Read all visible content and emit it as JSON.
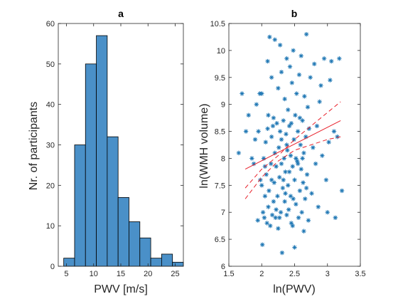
{
  "colors": {
    "bar_fill": "#4A90C8",
    "bar_edge": "#000000",
    "marker": "#1F77B4",
    "fit_line": "#E8202A",
    "axis": "#262626"
  },
  "chart_data": [
    {
      "type": "bar",
      "title": "a",
      "xlabel": "PWV [m/s]",
      "ylabel": "Nr. of participants",
      "xlim": [
        3.5,
        26.5
      ],
      "ylim": [
        0,
        60
      ],
      "xticks": [
        5,
        10,
        15,
        20,
        25
      ],
      "yticks": [
        0,
        10,
        20,
        30,
        40,
        50,
        60
      ],
      "bin_edges": [
        4.5,
        6.5,
        8.5,
        10.5,
        12.5,
        14.5,
        16.5,
        18.5,
        20.5,
        22.5,
        24.5,
        26.5
      ],
      "values": [
        2,
        30,
        50,
        57,
        32,
        17,
        11,
        7,
        2,
        3,
        1
      ],
      "grid": false
    },
    {
      "type": "scatter",
      "title": "b",
      "xlabel": "ln(PWV)",
      "ylabel": "ln(WMH volume)",
      "xlim": [
        1.5,
        3.5
      ],
      "ylim": [
        6,
        10.5
      ],
      "xticks": [
        1.5,
        2,
        2.5,
        3,
        3.5
      ],
      "yticks": [
        6,
        6.5,
        7,
        7.5,
        8,
        8.5,
        9,
        9.5,
        10,
        10.5
      ],
      "marker": "*",
      "grid": false,
      "fit": {
        "line": {
          "x": [
            1.75,
            3.2
          ],
          "y": [
            7.8,
            8.7
          ]
        },
        "ci_upper": [
          [
            1.75,
            7.45
          ],
          [
            2.0,
            7.8
          ],
          [
            2.25,
            8.05
          ],
          [
            2.5,
            8.35
          ],
          [
            2.75,
            8.6
          ],
          [
            3.0,
            8.85
          ],
          [
            3.2,
            9.05
          ]
        ],
        "ci_lower": [
          [
            1.75,
            7.25
          ],
          [
            2.0,
            7.65
          ],
          [
            2.25,
            7.95
          ],
          [
            2.5,
            8.15
          ],
          [
            2.75,
            8.25
          ],
          [
            3.0,
            8.35
          ],
          [
            3.2,
            8.4
          ]
        ]
      },
      "points": [
        [
          1.65,
          8.1
        ],
        [
          1.7,
          9.2
        ],
        [
          1.76,
          8.5
        ],
        [
          1.8,
          8.8
        ],
        [
          1.85,
          8.0
        ],
        [
          1.88,
          7.9
        ],
        [
          1.9,
          8.35
        ],
        [
          1.92,
          9.0
        ],
        [
          1.94,
          6.85
        ],
        [
          1.95,
          8.5
        ],
        [
          1.97,
          9.2
        ],
        [
          1.98,
          7.6
        ],
        [
          2.0,
          7.5
        ],
        [
          2.0,
          9.2
        ],
        [
          2.01,
          6.4
        ],
        [
          2.02,
          7.0
        ],
        [
          2.03,
          8.0
        ],
        [
          2.04,
          6.9
        ],
        [
          2.05,
          7.3
        ],
        [
          2.06,
          8.3
        ],
        [
          2.07,
          7.7
        ],
        [
          2.08,
          6.8
        ],
        [
          2.09,
          9.8
        ],
        [
          2.1,
          7.1
        ],
        [
          2.1,
          8.8
        ],
        [
          2.11,
          7.4
        ],
        [
          2.12,
          10.25
        ],
        [
          2.13,
          6.75
        ],
        [
          2.14,
          7.9
        ],
        [
          2.15,
          8.4
        ],
        [
          2.15,
          9.5
        ],
        [
          2.16,
          6.95
        ],
        [
          2.17,
          8.6
        ],
        [
          2.18,
          7.2
        ],
        [
          2.19,
          7.55
        ],
        [
          2.2,
          10.2
        ],
        [
          2.2,
          8.1
        ],
        [
          2.21,
          6.9
        ],
        [
          2.22,
          7.85
        ],
        [
          2.23,
          8.65
        ],
        [
          2.24,
          7.3
        ],
        [
          2.25,
          9.3
        ],
        [
          2.25,
          6.7
        ],
        [
          2.26,
          8.2
        ],
        [
          2.27,
          7.65
        ],
        [
          2.28,
          10.1
        ],
        [
          2.28,
          8.5
        ],
        [
          2.29,
          7.0
        ],
        [
          2.3,
          7.9
        ],
        [
          2.3,
          9.6
        ],
        [
          2.31,
          6.25
        ],
        [
          2.32,
          7.45
        ],
        [
          2.33,
          8.7
        ],
        [
          2.34,
          8.0
        ],
        [
          2.35,
          7.2
        ],
        [
          2.35,
          9.1
        ],
        [
          2.36,
          7.75
        ],
        [
          2.37,
          8.45
        ],
        [
          2.38,
          6.95
        ],
        [
          2.38,
          9.85
        ],
        [
          2.39,
          8.15
        ],
        [
          2.4,
          7.5
        ],
        [
          2.4,
          8.9
        ],
        [
          2.41,
          7.05
        ],
        [
          2.42,
          8.6
        ],
        [
          2.43,
          9.7
        ],
        [
          2.44,
          7.3
        ],
        [
          2.44,
          8.05
        ],
        [
          2.45,
          6.8
        ],
        [
          2.46,
          9.4
        ],
        [
          2.47,
          7.85
        ],
        [
          2.48,
          10.0
        ],
        [
          2.49,
          8.35
        ],
        [
          2.5,
          7.6
        ],
        [
          2.5,
          6.35
        ],
        [
          2.51,
          8.8
        ],
        [
          2.52,
          7.15
        ],
        [
          2.53,
          9.2
        ],
        [
          2.54,
          7.95
        ],
        [
          2.55,
          8.5
        ],
        [
          2.56,
          6.9
        ],
        [
          2.57,
          9.55
        ],
        [
          2.58,
          7.4
        ],
        [
          2.59,
          8.25
        ],
        [
          2.6,
          7.8
        ],
        [
          2.6,
          9.9
        ],
        [
          2.61,
          7.0
        ],
        [
          2.62,
          8.7
        ],
        [
          2.63,
          7.55
        ],
        [
          2.64,
          8.1
        ],
        [
          2.65,
          9.15
        ],
        [
          2.66,
          7.25
        ],
        [
          2.67,
          8.4
        ],
        [
          2.68,
          10.3
        ],
        [
          2.69,
          7.7
        ],
        [
          2.7,
          8.95
        ],
        [
          2.71,
          6.85
        ],
        [
          2.72,
          8.55
        ],
        [
          2.74,
          9.5
        ],
        [
          2.76,
          7.35
        ],
        [
          2.78,
          8.2
        ],
        [
          2.8,
          9.75
        ],
        [
          2.82,
          7.9
        ],
        [
          2.84,
          8.6
        ],
        [
          2.86,
          7.1
        ],
        [
          2.88,
          9.05
        ],
        [
          2.9,
          9.35
        ],
        [
          2.92,
          8.05
        ],
        [
          2.95,
          9.85
        ],
        [
          2.98,
          7.6
        ],
        [
          3.0,
          7.0
        ],
        [
          3.02,
          8.3
        ],
        [
          3.04,
          9.45
        ],
        [
          3.06,
          9.8
        ],
        [
          3.1,
          8.5
        ],
        [
          3.12,
          6.9
        ],
        [
          3.15,
          8.4
        ],
        [
          3.18,
          9.85
        ],
        [
          3.22,
          7.4
        ],
        [
          2.15,
          7.6
        ],
        [
          2.22,
          7.05
        ],
        [
          2.3,
          8.35
        ],
        [
          2.36,
          7.35
        ],
        [
          2.42,
          7.75
        ],
        [
          2.48,
          7.25
        ],
        [
          2.55,
          7.9
        ],
        [
          2.62,
          8.0
        ],
        [
          2.68,
          7.45
        ],
        [
          2.45,
          8.65
        ],
        [
          2.38,
          8.25
        ],
        [
          2.27,
          6.9
        ],
        [
          2.52,
          8.0
        ],
        [
          2.58,
          8.75
        ],
        [
          2.33,
          7.6
        ],
        [
          2.47,
          6.75
        ],
        [
          2.18,
          8.75
        ],
        [
          2.09,
          8.55
        ],
        [
          2.05,
          7.85
        ],
        [
          2.64,
          6.65
        ]
      ]
    }
  ]
}
